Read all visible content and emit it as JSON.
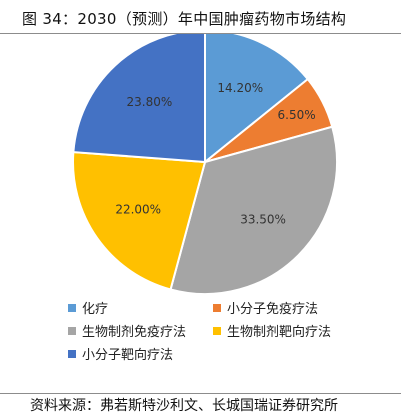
{
  "figure": {
    "title": "图 34：2030（预测）年中国肿瘤药物市场结构",
    "source": "资料来源：弗若斯特沙利文、长城国瑞证券研究所"
  },
  "chart_data": {
    "type": "pie",
    "start_angle_deg": 0,
    "direction": "clockwise",
    "legend_placement": "bottom",
    "slices": [
      {
        "name": "化疗",
        "value": 14.2,
        "label": "14.20%",
        "color": "#5b9bd5"
      },
      {
        "name": "小分子免疫疗法",
        "value": 6.5,
        "label": "6.50%",
        "color": "#ed7d31"
      },
      {
        "name": "生物制剂免疫疗法",
        "value": 33.5,
        "label": "33.50%",
        "color": "#a5a5a5"
      },
      {
        "name": "生物制剂靶向疗法",
        "value": 22.0,
        "label": "22.00%",
        "color": "#ffc000"
      },
      {
        "name": "小分子靶向疗法",
        "value": 23.8,
        "label": "23.80%",
        "color": "#4472c4"
      }
    ]
  }
}
